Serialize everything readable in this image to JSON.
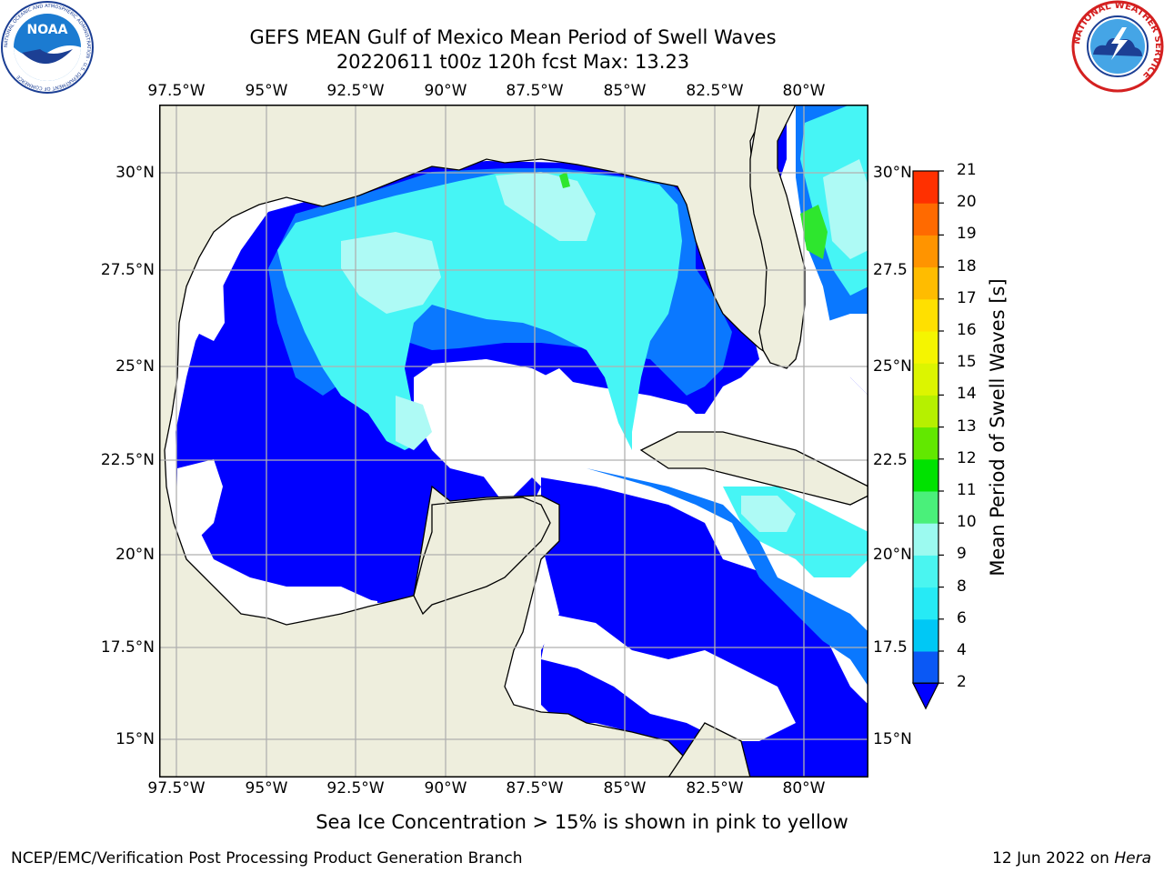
{
  "title_line1": "GEFS MEAN Gulf of Mexico Mean Period of Swell Waves",
  "title_line2": "20220611 t00z 120h fcst   Max: 13.23",
  "lon_labels": [
    "97.5°W",
    "95°W",
    "92.5°W",
    "90°W",
    "87.5°W",
    "85°W",
    "82.5°W",
    "80°W"
  ],
  "lat_labels": [
    "30°N",
    "27.5°N",
    "25°N",
    "22.5°N",
    "20°N",
    "17.5°N",
    "15°N"
  ],
  "lat_labels_right": [
    "30°N",
    "27.5",
    "25°N",
    "22.5",
    "20°N",
    "17.5",
    "15°N"
  ],
  "colorbar": {
    "label": "Mean Period of Swell Waves [s]",
    "ticks": [
      "2",
      "4",
      "6",
      "8",
      "9",
      "10",
      "11",
      "12",
      "13",
      "14",
      "15",
      "16",
      "17",
      "18",
      "19",
      "20",
      "21"
    ],
    "colors": [
      "#0a58f5",
      "#00c8f5",
      "#26eaf5",
      "#4af5f0",
      "#9cfaf0",
      "#4af07a",
      "#00e200",
      "#62e800",
      "#b6f000",
      "#dcf500",
      "#f5f500",
      "#ffe000",
      "#ffbc00",
      "#ff9400",
      "#ff6a00",
      "#ff3000",
      "#ff0000"
    ],
    "underflow_color": "#0000ff"
  },
  "map_colors": {
    "land": "#eeeedd",
    "grid": "#b0b0b0",
    "deep_blue": "#0000ff",
    "mid_blue": "#0a78ff",
    "cyan": "#46f5f5",
    "light_cyan": "#aefaf5",
    "green": "#2ee62e",
    "yellow_green": "#c8f046"
  },
  "caption": "Sea Ice Concentration > 15% is shown in pink to yellow",
  "footer_left": "NCEP/EMC/Verification Post Processing Product Generation Branch",
  "footer_right_date": "12 Jun 2022 on ",
  "footer_right_host": "Hera",
  "logos": {
    "noaa_text": "NOAA",
    "noaa_ring": "NATIONAL OCEANIC AND ATMOSPHERIC ADMINISTRATION · U.S. DEPARTMENT OF COMMERCE",
    "nws_ring": "NATIONAL WEATHER SERVICE"
  }
}
